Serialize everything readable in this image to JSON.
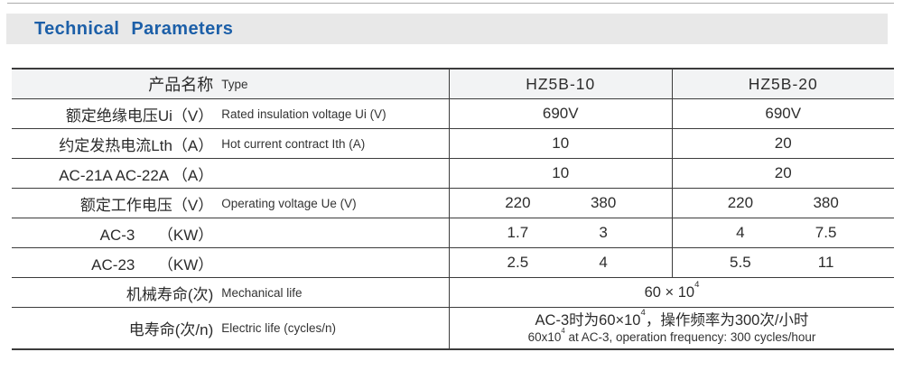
{
  "page": {
    "title": "Technical Parameters"
  },
  "colors": {
    "accent_blue": "#1c5fa8",
    "title_bar_bg": "#e8e8e8",
    "header_row_bg": "#f2f3f4",
    "border": "#3c3c3c"
  },
  "table": {
    "header": {
      "zh": "产品名称",
      "en": "Type"
    },
    "columns": [
      "HZ5B-10",
      "HZ5B-20"
    ],
    "rows": [
      {
        "id": "rated-insulation-voltage",
        "label_zh": "额定绝缘电压Ui（V）",
        "label_en": "Rated insulation voltage Ui (V)",
        "cells": [
          [
            "690V"
          ],
          [
            "690V"
          ]
        ]
      },
      {
        "id": "hot-current",
        "label_zh": "约定发热电流Lth（A）",
        "label_en": "Hot current contract Ith (A)",
        "cells": [
          [
            "10"
          ],
          [
            "20"
          ]
        ]
      },
      {
        "id": "ac21a-ac22a",
        "label_zh": "AC-21A AC-22A （A）",
        "label_en": "",
        "cells": [
          [
            "10"
          ],
          [
            "20"
          ]
        ]
      },
      {
        "id": "operating-voltage",
        "label_zh": "额定工作电压（V）",
        "label_en": "Operating voltage Ue (V)",
        "cells": [
          [
            "220",
            "380"
          ],
          [
            "220",
            "380"
          ]
        ]
      },
      {
        "id": "ac3-kw",
        "label_zh": "AC-3　　（KW）",
        "label_en": "",
        "cells": [
          [
            "1.7",
            "3"
          ],
          [
            "4",
            "7.5"
          ]
        ]
      },
      {
        "id": "ac23-kw",
        "label_zh": "AC-23　　（KW）",
        "label_en": "",
        "cells": [
          [
            "2.5",
            "4"
          ],
          [
            "5.5",
            "11"
          ]
        ]
      },
      {
        "id": "mechanical-life",
        "label_zh": "机械寿命(次)",
        "label_en": "Mechanical life",
        "span": true,
        "lines": [
          [
            {
              "t": "60 × 10"
            },
            {
              "t": "4",
              "sup": true
            }
          ]
        ]
      },
      {
        "id": "electric-life",
        "label_zh": "电寿命(次/n)",
        "label_en": "Electric life (cycles/n)",
        "span": true,
        "tall": true,
        "lines": [
          [
            {
              "t": "AC-3时为60×10"
            },
            {
              "t": "4",
              "sup": true
            },
            {
              "t": "，操作频率为300次/小时"
            }
          ],
          [
            {
              "t": "60x10"
            },
            {
              "t": "4",
              "sup": true
            },
            {
              "t": " at AC-3, operation frequency: 300 cycles/hour"
            }
          ]
        ]
      }
    ]
  }
}
